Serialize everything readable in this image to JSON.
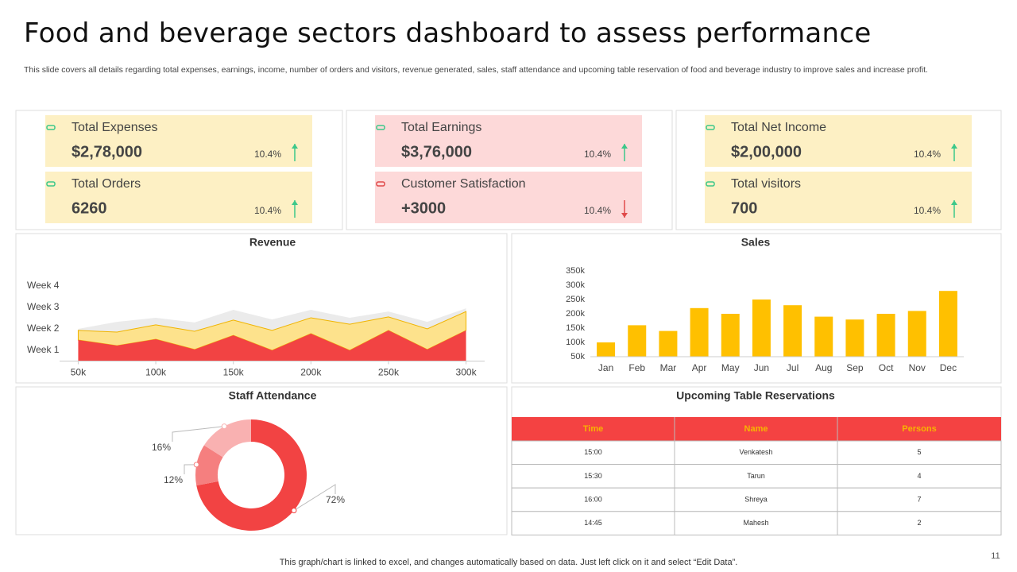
{
  "title": "Food and beverage sectors dashboard to assess performance",
  "subtitle": "This slide covers all details regarding total expenses, earnings, income, number of orders and visitors, revenue generated, sales, staff attendance and upcoming table reservation of food and beverage industry to improve sales and increase profit.",
  "kpi_panels": [
    {
      "color": "#fdf0c4",
      "cards": [
        {
          "label": "Total Expenses",
          "value": "$2,78,000",
          "change": "10.4%",
          "trend": "up"
        },
        {
          "label": "Total Orders",
          "value": "6260",
          "change": "10.4%",
          "trend": "up"
        }
      ]
    },
    {
      "color": "#fdd9d9",
      "cards": [
        {
          "label": "Total Earnings",
          "value": "$3,76,000",
          "change": "10.4%",
          "trend": "up"
        },
        {
          "label": "Customer Satisfaction",
          "value": "+3000",
          "change": "10.4%",
          "trend": "down"
        }
      ]
    },
    {
      "color": "#fdf0c4",
      "cards": [
        {
          "label": "Total Net Income",
          "value": "$2,00,000",
          "change": "10.4%",
          "trend": "up"
        },
        {
          "label": "Total visitors",
          "value": "700",
          "change": "10.4%",
          "trend": "up"
        }
      ]
    }
  ],
  "chart_data": [
    {
      "type": "area",
      "title": "Revenue",
      "x": [
        50,
        75,
        100,
        125,
        150,
        175,
        200,
        225,
        250,
        275,
        300
      ],
      "xlim": [
        38,
        312
      ],
      "xticks": [
        {
          "value": 50,
          "label": "50k"
        },
        {
          "value": 100,
          "label": "100k"
        },
        {
          "value": 150,
          "label": "150k"
        },
        {
          "value": 200,
          "label": "200k"
        },
        {
          "value": 250,
          "label": "250k"
        },
        {
          "value": 300,
          "label": "300k"
        }
      ],
      "ylim": [
        0,
        4
      ],
      "yticks": [
        {
          "value": 0.5,
          "label": "Week 1"
        },
        {
          "value": 1.5,
          "label": "Week 2"
        },
        {
          "value": 2.5,
          "label": "Week 3"
        },
        {
          "value": 3.5,
          "label": "Week 4"
        }
      ],
      "stacked": true,
      "series": [
        {
          "color": "#f24343",
          "values": [
            0.98,
            0.72,
            1.02,
            0.54,
            1.2,
            0.5,
            1.28,
            0.5,
            1.43,
            0.54,
            1.43
          ]
        },
        {
          "color": "#fde28c",
          "values": [
            0.45,
            0.63,
            0.67,
            0.85,
            0.71,
            0.93,
            0.74,
            1.22,
            0.63,
            0.96,
            0.88
          ]
        },
        {
          "color": "#ebebeb",
          "values": [
            0.07,
            0.48,
            0.33,
            0.41,
            0.48,
            0.51,
            0.37,
            0.3,
            0.25,
            0.33,
            0.15
          ]
        }
      ]
    },
    {
      "type": "bar",
      "title": "Sales",
      "categories": [
        "Jan",
        "Feb",
        "Mar",
        "Apr",
        "May",
        "Jun",
        "Jul",
        "Aug",
        "Sep",
        "Oct",
        "Nov",
        "Dec"
      ],
      "values": [
        100000,
        160000,
        140000,
        220000,
        200000,
        250000,
        230000,
        190000,
        180000,
        200000,
        210000,
        280000
      ],
      "color": "#ffc000",
      "ylim": [
        50000,
        350000
      ],
      "yticks": [
        {
          "value": 50000,
          "label": "50k"
        },
        {
          "value": 100000,
          "label": "100k"
        },
        {
          "value": 150000,
          "label": "150k"
        },
        {
          "value": 200000,
          "label": "200k"
        },
        {
          "value": 250000,
          "label": "250k"
        },
        {
          "value": 300000,
          "label": "300k"
        },
        {
          "value": 350000,
          "label": "350k"
        }
      ]
    },
    {
      "type": "donut",
      "title": "Staff Attendance",
      "values": [
        72,
        12,
        16
      ],
      "value_labels": [
        "72%",
        "12%",
        "16%"
      ],
      "colors": [
        "#f24343",
        "#f57f7f",
        "#f9b1b1"
      ]
    }
  ],
  "table": {
    "title": "Upcoming Table Reservations",
    "header": [
      "Time",
      "Name",
      "Persons"
    ],
    "rows": [
      [
        "15:00",
        "Venkatesh",
        "5"
      ],
      [
        "15:30",
        "Tarun",
        "4"
      ],
      [
        "16:00",
        "Shreya",
        "7"
      ],
      [
        "14:45",
        "Mahesh",
        "2"
      ]
    ]
  },
  "footer": "This graph/chart is linked to excel,  and changes automatically based on data. Just left click on it and select “Edit Data”.",
  "page_number": "11"
}
